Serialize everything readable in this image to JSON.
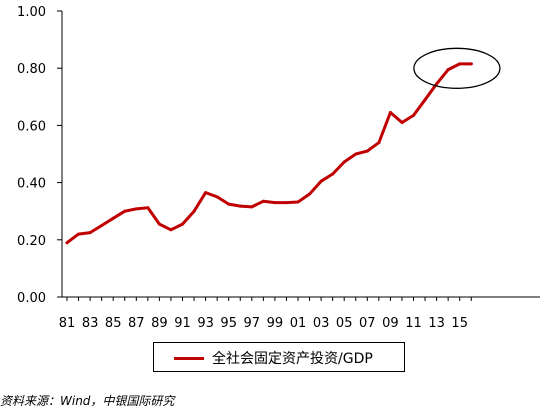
{
  "chart_data": {
    "type": "line",
    "x": [
      "81",
      "82",
      "83",
      "84",
      "85",
      "86",
      "87",
      "88",
      "89",
      "90",
      "91",
      "92",
      "93",
      "94",
      "95",
      "96",
      "97",
      "98",
      "99",
      "00",
      "01",
      "02",
      "03",
      "04",
      "05",
      "06",
      "07",
      "08",
      "09",
      "10",
      "11",
      "12",
      "13",
      "14",
      "15",
      "16"
    ],
    "x_tick_labels": [
      "81",
      "83",
      "85",
      "87",
      "89",
      "91",
      "93",
      "95",
      "97",
      "99",
      "01",
      "03",
      "05",
      "07",
      "09",
      "11",
      "13",
      "15"
    ],
    "series": [
      {
        "name": "全社会固定资产投资/GDP",
        "color": "#c00000",
        "values": [
          0.19,
          0.22,
          0.225,
          0.25,
          0.275,
          0.3,
          0.308,
          0.312,
          0.255,
          0.235,
          0.255,
          0.3,
          0.365,
          0.35,
          0.325,
          0.318,
          0.315,
          0.335,
          0.33,
          0.33,
          0.332,
          0.36,
          0.405,
          0.43,
          0.472,
          0.5,
          0.51,
          0.54,
          0.645,
          0.61,
          0.635,
          0.69,
          0.745,
          0.795,
          0.815,
          0.815
        ]
      }
    ],
    "y_tick_labels": [
      "0.00",
      "0.20",
      "0.40",
      "0.60",
      "0.80",
      "1.00"
    ],
    "ylim": [
      0,
      1.0
    ],
    "grid": false,
    "legend_position": "bottom",
    "annotation": "ellipse highlighting 2013-2016"
  },
  "legend": {
    "label": "全社会固定资产投资/GDP"
  },
  "source": {
    "text": "资料来源：Wind，中银国际研究"
  }
}
